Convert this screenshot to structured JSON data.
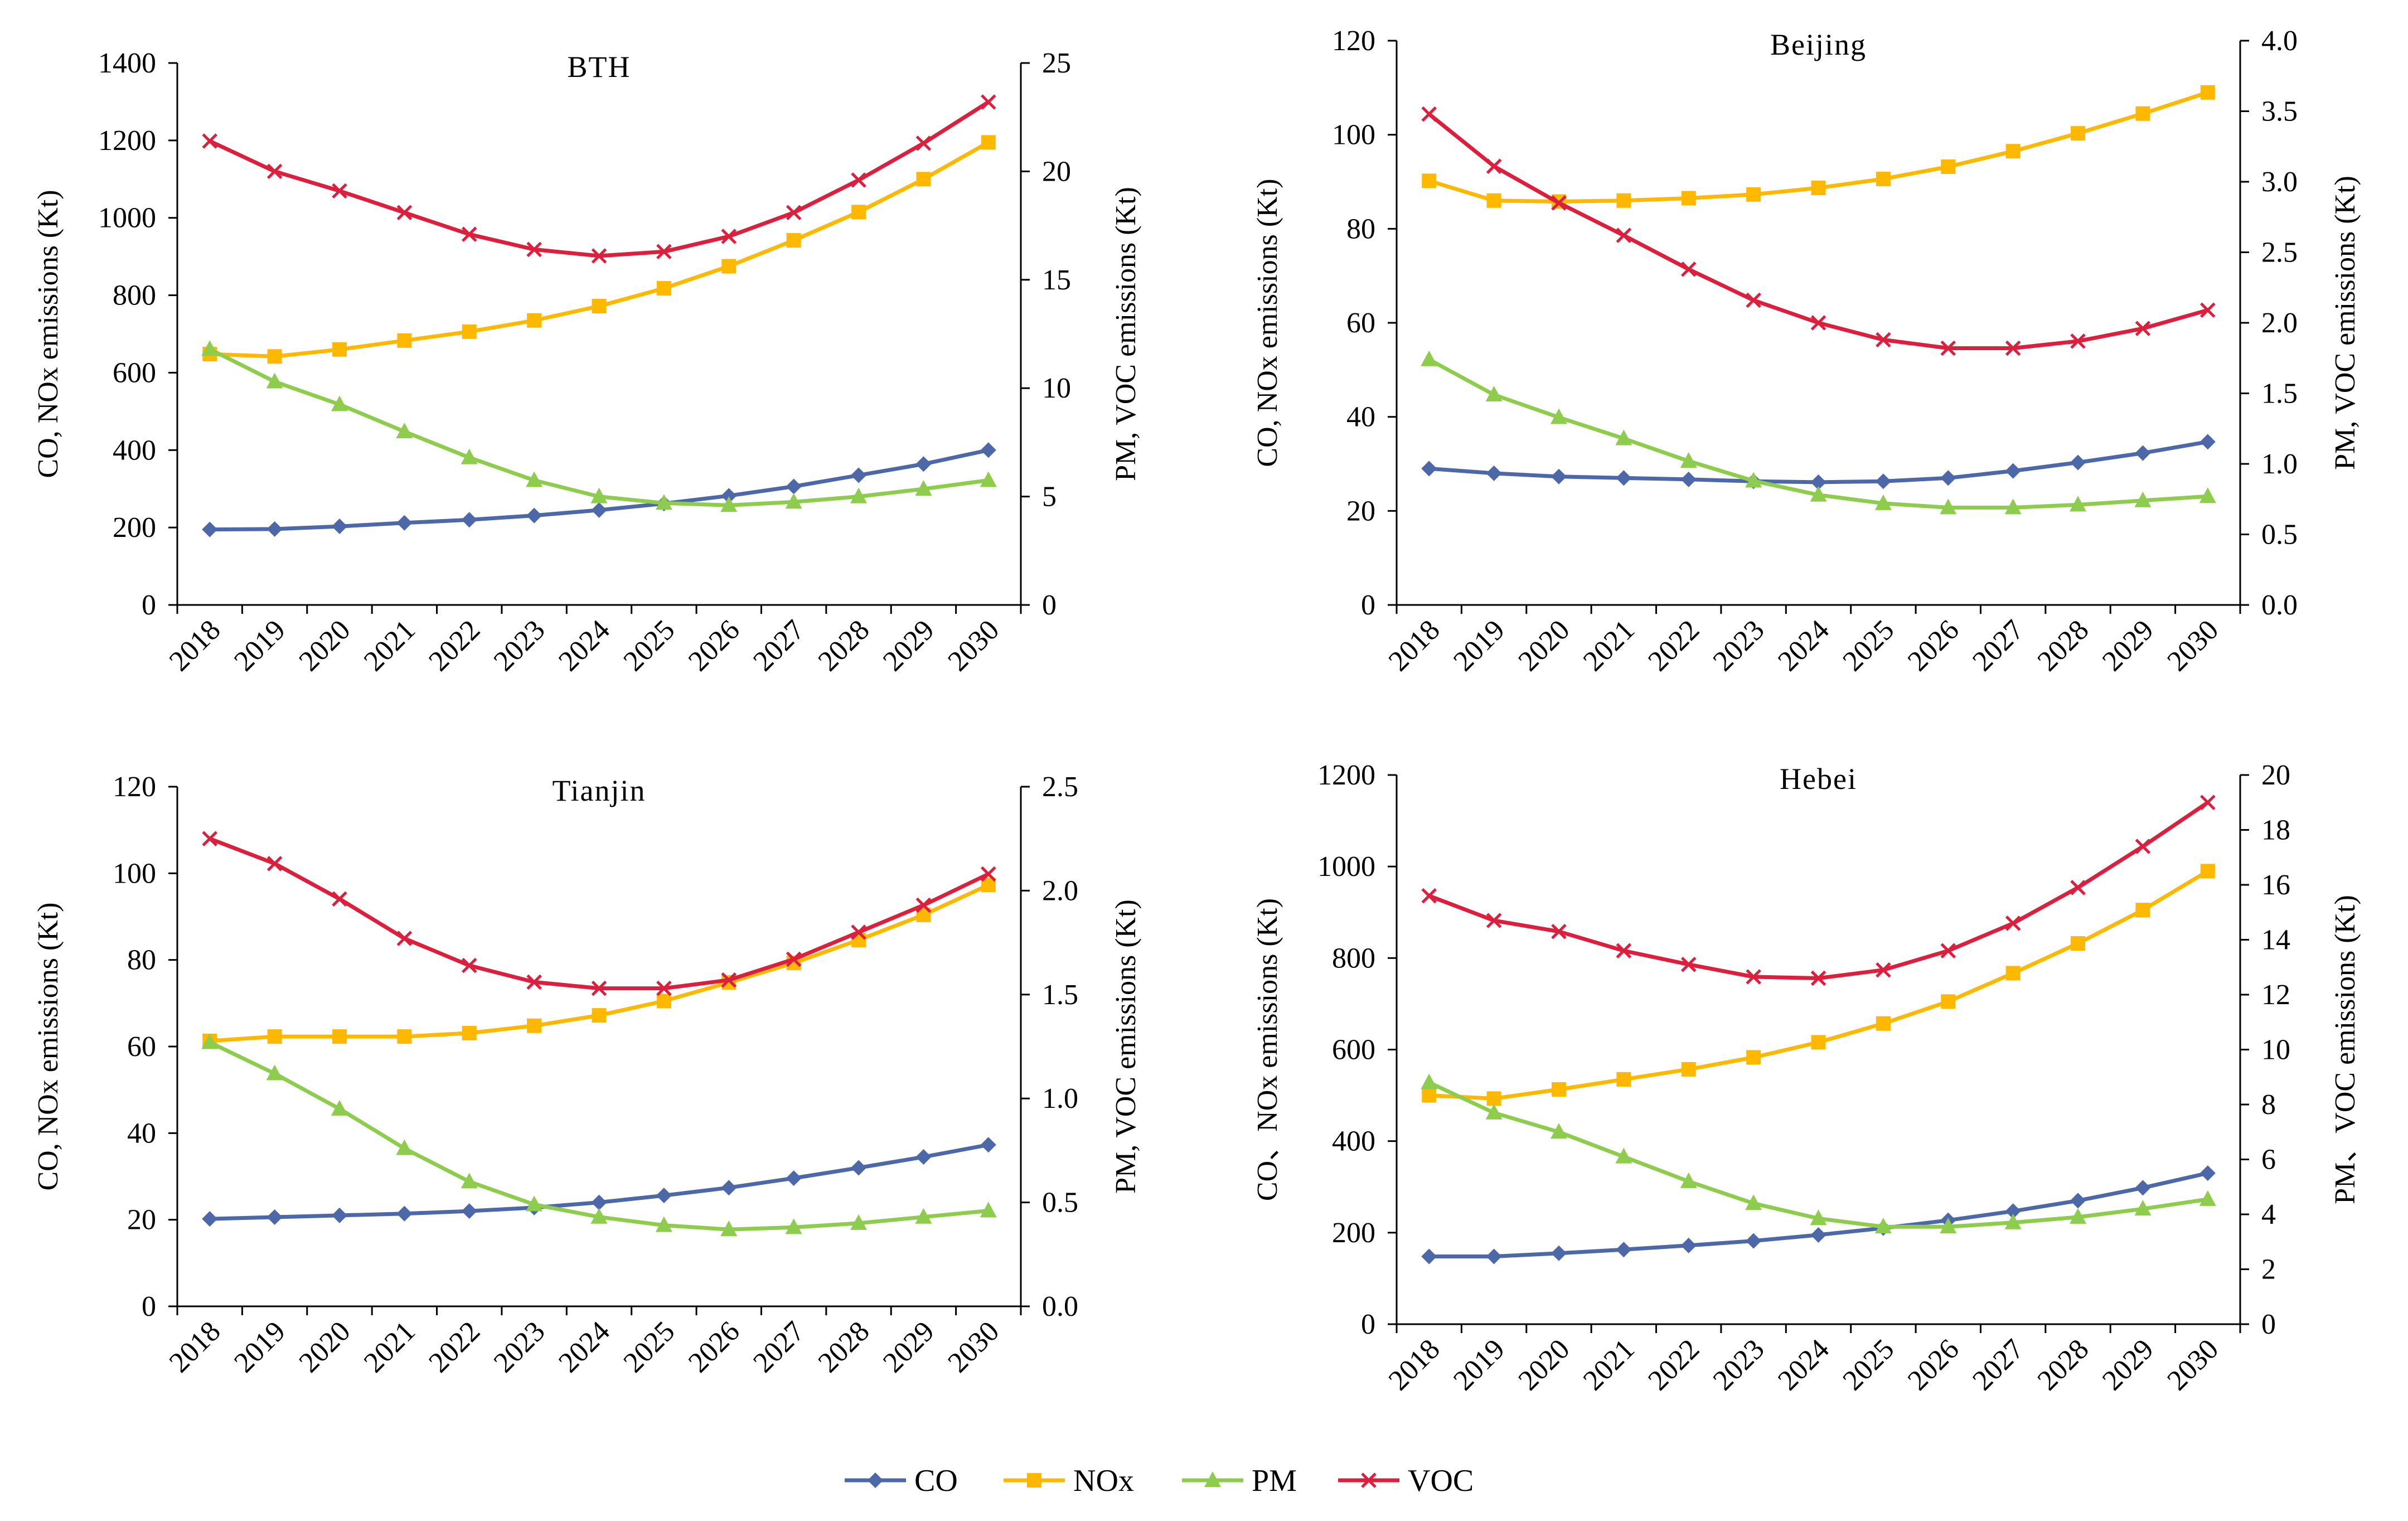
{
  "legend": [
    {
      "name": "CO",
      "color": "#4d68a8",
      "marker": "diamond"
    },
    {
      "name": "NOx",
      "color": "#ffb800",
      "marker": "square"
    },
    {
      "name": "PM",
      "color": "#8dcc4c",
      "marker": "triangle"
    },
    {
      "name": "VOC",
      "color": "#dc1f3c",
      "marker": "cross"
    }
  ],
  "chart_data": [
    {
      "type": "line",
      "title": "BTH",
      "x": [
        "2018",
        "2019",
        "2020",
        "2021",
        "2022",
        "2023",
        "2024",
        "2025",
        "2026",
        "2027",
        "2028",
        "2029",
        "2030"
      ],
      "ylabel": "CO, NOx emissions (Kt)",
      "y2label": "PM, VOC emissions (Kt)",
      "ylim": [
        0,
        1400
      ],
      "y2lim": [
        0,
        25
      ],
      "yticks": [
        "0",
        "200",
        "400",
        "600",
        "800",
        "1000",
        "1200",
        "1400"
      ],
      "y2ticks": [
        "0",
        "5",
        "10",
        "15",
        "20",
        "25"
      ],
      "series": [
        {
          "name": "CO",
          "axis": "left",
          "values": [
            195,
            196,
            203,
            212,
            220,
            231,
            245,
            262,
            282,
            306,
            335,
            364,
            400
          ]
        },
        {
          "name": "NOx",
          "axis": "left",
          "values": [
            648,
            642,
            660,
            683,
            706,
            735,
            772,
            818,
            875,
            942,
            1015,
            1100,
            1195
          ]
        },
        {
          "name": "PM",
          "axis": "right",
          "values": [
            11.8,
            10.3,
            9.25,
            8.0,
            6.8,
            5.75,
            5.0,
            4.7,
            4.6,
            4.75,
            5.0,
            5.35,
            5.75
          ]
        },
        {
          "name": "VOC",
          "axis": "right",
          "values": [
            21.4,
            20.0,
            19.1,
            18.1,
            17.1,
            16.4,
            16.1,
            16.3,
            17.0,
            18.1,
            19.6,
            21.3,
            23.2
          ]
        }
      ]
    },
    {
      "type": "line",
      "title": "Beijing",
      "x": [
        "2018",
        "2019",
        "2020",
        "2021",
        "2022",
        "2023",
        "2024",
        "2025",
        "2026",
        "2027",
        "2028",
        "2029",
        "2030"
      ],
      "ylabel": "CO, NOx  emissions (Kt)",
      "y2label": "PM, VOC emissions (Kt)",
      "ylim": [
        0,
        120
      ],
      "y2lim": [
        0,
        4
      ],
      "yticks": [
        "0",
        "20",
        "40",
        "60",
        "80",
        "100",
        "120"
      ],
      "y2ticks": [
        "0.0",
        "0.5",
        "1.0",
        "1.5",
        "2.0",
        "2.5",
        "3.0",
        "3.5",
        "4.0"
      ],
      "series": [
        {
          "name": "CO",
          "axis": "left",
          "values": [
            29,
            28,
            27.3,
            27,
            26.7,
            26.3,
            26.1,
            26.3,
            27,
            28.5,
            30.3,
            32.3,
            34.7
          ]
        },
        {
          "name": "NOx",
          "axis": "left",
          "values": [
            90.2,
            86,
            85.8,
            86,
            86.5,
            87.3,
            88.7,
            90.6,
            93.2,
            96.5,
            100.3,
            104.5,
            109
          ]
        },
        {
          "name": "PM",
          "axis": "right",
          "values": [
            1.74,
            1.49,
            1.33,
            1.18,
            1.02,
            0.88,
            0.78,
            0.72,
            0.69,
            0.69,
            0.71,
            0.74,
            0.77
          ]
        },
        {
          "name": "VOC",
          "axis": "right",
          "values": [
            3.48,
            3.11,
            2.85,
            2.62,
            2.38,
            2.16,
            2.0,
            1.88,
            1.82,
            1.82,
            1.87,
            1.96,
            2.09
          ]
        }
      ]
    },
    {
      "type": "line",
      "title": "Tianjin",
      "x": [
        "2018",
        "2019",
        "2020",
        "2021",
        "2022",
        "2023",
        "2024",
        "2025",
        "2026",
        "2027",
        "2028",
        "2029",
        "2030"
      ],
      "ylabel": "CO, NOx emissions (Kt)",
      "y2label": "PM, VOC emissions (Kt)",
      "ylim": [
        0,
        120
      ],
      "y2lim": [
        0,
        2.5
      ],
      "yticks": [
        "0",
        "20",
        "40",
        "60",
        "80",
        "100",
        "120"
      ],
      "y2ticks": [
        "0.0",
        "0.5",
        "1.0",
        "1.5",
        "2.0",
        "2.5"
      ],
      "series": [
        {
          "name": "CO",
          "axis": "left",
          "values": [
            20.2,
            20.6,
            21,
            21.4,
            22,
            22.8,
            24,
            25.6,
            27.4,
            29.6,
            32,
            34.5,
            37.3
          ]
        },
        {
          "name": "NOx",
          "axis": "left",
          "values": [
            61.3,
            62.3,
            62.3,
            62.3,
            63.1,
            64.8,
            67.2,
            70.5,
            74.8,
            79.3,
            84.6,
            90.4,
            97.3
          ]
        },
        {
          "name": "PM",
          "axis": "right",
          "values": [
            1.27,
            1.12,
            0.95,
            0.76,
            0.6,
            0.49,
            0.43,
            0.39,
            0.37,
            0.38,
            0.4,
            0.43,
            0.46
          ]
        },
        {
          "name": "VOC",
          "axis": "right",
          "values": [
            2.25,
            2.13,
            1.96,
            1.77,
            1.64,
            1.56,
            1.53,
            1.53,
            1.57,
            1.67,
            1.8,
            1.93,
            2.08
          ]
        }
      ]
    },
    {
      "type": "line",
      "title": "Hebei",
      "x": [
        "2018",
        "2019",
        "2020",
        "2021",
        "2022",
        "2023",
        "2024",
        "2025",
        "2026",
        "2027",
        "2028",
        "2029",
        "2030"
      ],
      "ylabel": "CO、NOx emissions (Kt)",
      "y2label": "PM、VOC emissions (Kt)",
      "ylim": [
        0,
        1200
      ],
      "y2lim": [
        0,
        20
      ],
      "yticks": [
        "0",
        "200",
        "400",
        "600",
        "800",
        "1000",
        "1200"
      ],
      "y2ticks": [
        "0",
        "2",
        "4",
        "6",
        "8",
        "10",
        "12",
        "14",
        "16",
        "18",
        "20"
      ],
      "series": [
        {
          "name": "CO",
          "axis": "left",
          "values": [
            148,
            148,
            155,
            163,
            172,
            182,
            195,
            210,
            227,
            247,
            270,
            298,
            330
          ]
        },
        {
          "name": "NOx",
          "axis": "left",
          "values": [
            500,
            493,
            513,
            535,
            557,
            583,
            616,
            657,
            705,
            767,
            832,
            905,
            990
          ]
        },
        {
          "name": "PM",
          "axis": "right",
          "values": [
            8.8,
            7.7,
            7.0,
            6.1,
            5.2,
            4.4,
            3.85,
            3.55,
            3.55,
            3.7,
            3.9,
            4.2,
            4.55
          ]
        },
        {
          "name": "VOC",
          "axis": "right",
          "values": [
            15.6,
            14.7,
            14.3,
            13.6,
            13.1,
            12.65,
            12.6,
            12.9,
            13.6,
            14.6,
            15.9,
            17.4,
            19.0
          ]
        }
      ]
    }
  ]
}
